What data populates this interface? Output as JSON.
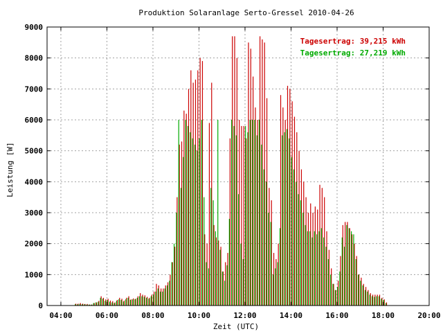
{
  "chart_data": {
    "type": "bar",
    "title": "Produktion Solaranlage Serto-Gressel 2010-04-26",
    "xlabel": "Zeit (UTC)",
    "ylabel": "Leistung [W]",
    "xlim": [
      3.4,
      20
    ],
    "ylim": [
      0,
      9000
    ],
    "x_ticks": [
      "04:00",
      "06:00",
      "08:00",
      "10:00",
      "12:00",
      "14:00",
      "16:00",
      "18:00",
      "20:00"
    ],
    "x_tick_values": [
      4,
      6,
      8,
      10,
      12,
      14,
      16,
      18,
      20
    ],
    "y_ticks": [
      "0",
      "1000",
      "2000",
      "3000",
      "4000",
      "5000",
      "6000",
      "7000",
      "8000",
      "9000"
    ],
    "y_tick_values": [
      0,
      1000,
      2000,
      3000,
      4000,
      5000,
      6000,
      7000,
      8000,
      9000
    ],
    "grid": true,
    "legend_position": "top-right",
    "colors": {
      "series_a": "#cc0000",
      "series_b": "#00aa00",
      "grid": "#a0a0a0",
      "axis": "#000000"
    },
    "legend": {
      "entry_a": "Tagesertrag: 39,215 kWh",
      "entry_b": "Tagesertrag: 27,219 kWh"
    },
    "series_a_points": [
      [
        4.65,
        60
      ],
      [
        4.75,
        60
      ],
      [
        4.85,
        80
      ],
      [
        4.95,
        60
      ],
      [
        5.05,
        50
      ],
      [
        5.15,
        50
      ],
      [
        5.25,
        30
      ],
      [
        5.35,
        30
      ],
      [
        5.45,
        80
      ],
      [
        5.55,
        100
      ],
      [
        5.65,
        150
      ],
      [
        5.75,
        300
      ],
      [
        5.85,
        250
      ],
      [
        5.95,
        200
      ],
      [
        6.05,
        220
      ],
      [
        6.15,
        160
      ],
      [
        6.25,
        140
      ],
      [
        6.35,
        100
      ],
      [
        6.45,
        180
      ],
      [
        6.55,
        250
      ],
      [
        6.65,
        220
      ],
      [
        6.75,
        160
      ],
      [
        6.85,
        250
      ],
      [
        6.95,
        300
      ],
      [
        7.05,
        200
      ],
      [
        7.15,
        230
      ],
      [
        7.25,
        220
      ],
      [
        7.35,
        300
      ],
      [
        7.45,
        400
      ],
      [
        7.55,
        350
      ],
      [
        7.65,
        330
      ],
      [
        7.75,
        280
      ],
      [
        7.85,
        250
      ],
      [
        7.95,
        350
      ],
      [
        8.05,
        450
      ],
      [
        8.15,
        700
      ],
      [
        8.25,
        650
      ],
      [
        8.35,
        550
      ],
      [
        8.45,
        550
      ],
      [
        8.55,
        650
      ],
      [
        8.65,
        750
      ],
      [
        8.75,
        1000
      ],
      [
        8.85,
        1400
      ],
      [
        8.95,
        1900
      ],
      [
        9.05,
        3500
      ],
      [
        9.15,
        5200
      ],
      [
        9.25,
        5300
      ],
      [
        9.35,
        6300
      ],
      [
        9.45,
        6200
      ],
      [
        9.55,
        7000
      ],
      [
        9.65,
        7600
      ],
      [
        9.75,
        7200
      ],
      [
        9.85,
        7300
      ],
      [
        9.95,
        7600
      ],
      [
        10.05,
        8000
      ],
      [
        10.15,
        7900
      ],
      [
        10.25,
        2300
      ],
      [
        10.35,
        2000
      ],
      [
        10.45,
        5900
      ],
      [
        10.55,
        7200
      ],
      [
        10.65,
        2600
      ],
      [
        10.75,
        2200
      ],
      [
        10.85,
        2100
      ],
      [
        10.95,
        1900
      ],
      [
        11.05,
        1100
      ],
      [
        11.15,
        1400
      ],
      [
        11.25,
        1700
      ],
      [
        11.35,
        5400
      ],
      [
        11.45,
        8700
      ],
      [
        11.55,
        8700
      ],
      [
        11.65,
        8000
      ],
      [
        11.75,
        6000
      ],
      [
        11.85,
        5800
      ],
      [
        11.95,
        5800
      ],
      [
        12.05,
        5400
      ],
      [
        12.15,
        8500
      ],
      [
        12.25,
        8300
      ],
      [
        12.35,
        7400
      ],
      [
        12.45,
        6400
      ],
      [
        12.55,
        6000
      ],
      [
        12.65,
        8700
      ],
      [
        12.75,
        8600
      ],
      [
        12.85,
        8500
      ],
      [
        12.95,
        6700
      ],
      [
        13.05,
        3800
      ],
      [
        13.15,
        3400
      ],
      [
        13.25,
        1700
      ],
      [
        13.35,
        1500
      ],
      [
        13.45,
        2000
      ],
      [
        13.55,
        6800
      ],
      [
        13.65,
        6400
      ],
      [
        13.75,
        6000
      ],
      [
        13.85,
        7100
      ],
      [
        13.95,
        7000
      ],
      [
        14.05,
        6600
      ],
      [
        14.15,
        6100
      ],
      [
        14.25,
        5600
      ],
      [
        14.35,
        5000
      ],
      [
        14.45,
        4400
      ],
      [
        14.55,
        4000
      ],
      [
        14.65,
        3500
      ],
      [
        14.75,
        3000
      ],
      [
        14.85,
        3300
      ],
      [
        14.95,
        3000
      ],
      [
        15.05,
        3200
      ],
      [
        15.15,
        3100
      ],
      [
        15.25,
        3900
      ],
      [
        15.35,
        3800
      ],
      [
        15.45,
        3500
      ],
      [
        15.55,
        2400
      ],
      [
        15.65,
        1800
      ],
      [
        15.75,
        1200
      ],
      [
        15.85,
        700
      ],
      [
        15.95,
        500
      ],
      [
        16.05,
        800
      ],
      [
        16.15,
        1600
      ],
      [
        16.25,
        2600
      ],
      [
        16.35,
        2700
      ],
      [
        16.45,
        2700
      ],
      [
        16.55,
        2500
      ],
      [
        16.65,
        2300
      ],
      [
        16.75,
        2000
      ],
      [
        16.85,
        1600
      ],
      [
        16.95,
        1000
      ],
      [
        17.05,
        900
      ],
      [
        17.15,
        700
      ],
      [
        17.25,
        600
      ],
      [
        17.35,
        500
      ],
      [
        17.45,
        400
      ],
      [
        17.55,
        350
      ],
      [
        17.65,
        350
      ],
      [
        17.75,
        350
      ],
      [
        17.85,
        350
      ],
      [
        17.95,
        250
      ],
      [
        18.05,
        200
      ],
      [
        18.15,
        100
      ]
    ],
    "series_b_points": [
      [
        4.62,
        40
      ],
      [
        4.72,
        40
      ],
      [
        4.82,
        50
      ],
      [
        4.92,
        40
      ],
      [
        5.02,
        40
      ],
      [
        5.12,
        30
      ],
      [
        5.22,
        30
      ],
      [
        5.32,
        30
      ],
      [
        5.42,
        80
      ],
      [
        5.52,
        100
      ],
      [
        5.62,
        120
      ],
      [
        5.72,
        250
      ],
      [
        5.82,
        220
      ],
      [
        5.92,
        150
      ],
      [
        6.02,
        180
      ],
      [
        6.12,
        120
      ],
      [
        6.22,
        100
      ],
      [
        6.32,
        80
      ],
      [
        6.42,
        150
      ],
      [
        6.52,
        200
      ],
      [
        6.62,
        180
      ],
      [
        6.72,
        130
      ],
      [
        6.82,
        200
      ],
      [
        6.92,
        250
      ],
      [
        7.02,
        180
      ],
      [
        7.12,
        200
      ],
      [
        7.22,
        200
      ],
      [
        7.32,
        250
      ],
      [
        7.42,
        300
      ],
      [
        7.52,
        300
      ],
      [
        7.62,
        280
      ],
      [
        7.72,
        250
      ],
      [
        7.82,
        220
      ],
      [
        7.92,
        300
      ],
      [
        8.02,
        350
      ],
      [
        8.12,
        450
      ],
      [
        8.22,
        550
      ],
      [
        8.32,
        450
      ],
      [
        8.42,
        450
      ],
      [
        8.52,
        550
      ],
      [
        8.62,
        650
      ],
      [
        8.72,
        800
      ],
      [
        8.82,
        1400
      ],
      [
        8.92,
        2000
      ],
      [
        9.02,
        3000
      ],
      [
        9.12,
        6000
      ],
      [
        9.22,
        3800
      ],
      [
        9.32,
        4800
      ],
      [
        9.42,
        6000
      ],
      [
        9.52,
        5800
      ],
      [
        9.62,
        5600
      ],
      [
        9.72,
        5400
      ],
      [
        9.82,
        5200
      ],
      [
        9.92,
        5000
      ],
      [
        10.02,
        5400
      ],
      [
        10.12,
        6000
      ],
      [
        10.22,
        3500
      ],
      [
        10.32,
        1400
      ],
      [
        10.42,
        1200
      ],
      [
        10.52,
        3800
      ],
      [
        10.62,
        3400
      ],
      [
        10.72,
        2400
      ],
      [
        10.82,
        6000
      ],
      [
        10.92,
        1800
      ],
      [
        11.02,
        1100
      ],
      [
        11.12,
        800
      ],
      [
        11.22,
        1300
      ],
      [
        11.32,
        2800
      ],
      [
        11.42,
        6000
      ],
      [
        11.52,
        5800
      ],
      [
        11.62,
        5500
      ],
      [
        11.72,
        3600
      ],
      [
        11.82,
        2000
      ],
      [
        11.92,
        1500
      ],
      [
        12.02,
        5800
      ],
      [
        12.12,
        5600
      ],
      [
        12.22,
        6000
      ],
      [
        12.32,
        6000
      ],
      [
        12.42,
        6000
      ],
      [
        12.52,
        5500
      ],
      [
        12.62,
        6000
      ],
      [
        12.72,
        5200
      ],
      [
        12.82,
        4400
      ],
      [
        12.92,
        4000
      ],
      [
        13.02,
        3000
      ],
      [
        13.12,
        2700
      ],
      [
        13.22,
        1000
      ],
      [
        13.32,
        1200
      ],
      [
        13.42,
        1400
      ],
      [
        13.52,
        2500
      ],
      [
        13.62,
        5500
      ],
      [
        13.72,
        5600
      ],
      [
        13.82,
        5700
      ],
      [
        13.92,
        5400
      ],
      [
        14.02,
        4800
      ],
      [
        14.12,
        4400
      ],
      [
        14.22,
        4000
      ],
      [
        14.32,
        3600
      ],
      [
        14.42,
        3400
      ],
      [
        14.52,
        3000
      ],
      [
        14.62,
        2600
      ],
      [
        14.72,
        2400
      ],
      [
        14.82,
        2400
      ],
      [
        14.92,
        2200
      ],
      [
        15.02,
        2400
      ],
      [
        15.12,
        2300
      ],
      [
        15.22,
        2400
      ],
      [
        15.32,
        2500
      ],
      [
        15.42,
        2200
      ],
      [
        15.52,
        1900
      ],
      [
        15.62,
        1500
      ],
      [
        15.72,
        1000
      ],
      [
        15.82,
        700
      ],
      [
        15.92,
        500
      ],
      [
        16.02,
        600
      ],
      [
        16.12,
        1100
      ],
      [
        16.22,
        2200
      ],
      [
        16.32,
        1900
      ],
      [
        16.42,
        2600
      ],
      [
        16.52,
        2500
      ],
      [
        16.62,
        2400
      ],
      [
        16.72,
        2300
      ],
      [
        16.82,
        1500
      ],
      [
        16.92,
        1000
      ],
      [
        17.02,
        800
      ],
      [
        17.12,
        650
      ],
      [
        17.22,
        500
      ],
      [
        17.32,
        450
      ],
      [
        17.42,
        350
      ],
      [
        17.52,
        300
      ],
      [
        17.62,
        280
      ],
      [
        17.72,
        300
      ],
      [
        17.82,
        300
      ],
      [
        17.92,
        220
      ],
      [
        18.02,
        180
      ],
      [
        18.12,
        80
      ]
    ]
  }
}
